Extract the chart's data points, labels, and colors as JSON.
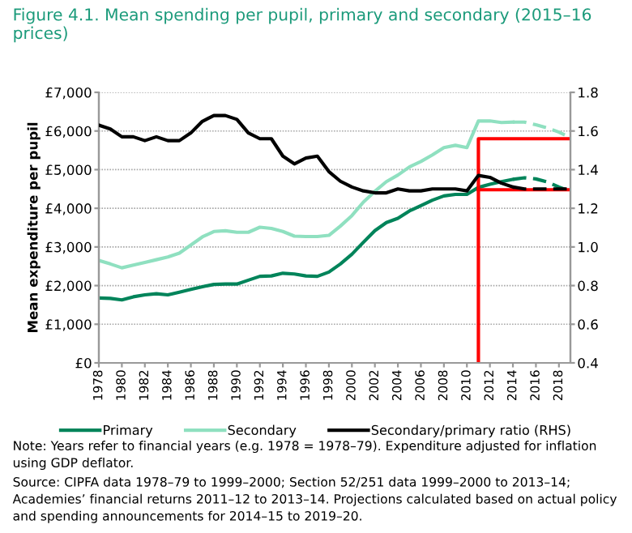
{
  "chart_data": {
    "type": "line",
    "title": "Figure 4.1. Mean spending per pupil, primary and secondary (2015–16 prices)",
    "ylabel": "Mean expenditure per pupil",
    "xlim": [
      1978,
      2019
    ],
    "xticks": [
      1978,
      1980,
      1982,
      1984,
      1986,
      1988,
      1990,
      1992,
      1994,
      1996,
      1998,
      2000,
      2002,
      2004,
      2006,
      2008,
      2010,
      2012,
      2014,
      2016,
      2018
    ],
    "ylim": [
      0,
      7000
    ],
    "yticks": [
      {
        "value": 0,
        "label": "£0"
      },
      {
        "value": 1000,
        "label": "£1,000"
      },
      {
        "value": 2000,
        "label": "£2,000"
      },
      {
        "value": 3000,
        "label": "£3,000"
      },
      {
        "value": 4000,
        "label": "£4,000"
      },
      {
        "value": 5000,
        "label": "£5,000"
      },
      {
        "value": 6000,
        "label": "£6,000"
      },
      {
        "value": 7000,
        "label": "£7,000"
      }
    ],
    "y2lim": [
      0.4,
      1.8
    ],
    "y2ticks": [
      0.4,
      0.6,
      0.8,
      {
        "value": 1.0,
        "label": "1.0"
      },
      1.2,
      1.4,
      1.6,
      1.8
    ],
    "grid": "y",
    "legend": "bottom",
    "marker": "none",
    "series": [
      {
        "name": "Primary",
        "color": "#00845a",
        "line_style": "solid",
        "x": [
          1978,
          1979,
          1980,
          1981,
          1982,
          1983,
          1984,
          1985,
          1986,
          1987,
          1988,
          1989,
          1990,
          1991,
          1992,
          1993,
          1994,
          1995,
          1996,
          1997,
          1998,
          1999,
          2000,
          2001,
          2002,
          2003,
          2004,
          2005,
          2006,
          2007,
          2008,
          2009,
          2010,
          2011,
          2012,
          2013,
          2014
        ],
        "values": [
          1680,
          1670,
          1630,
          1710,
          1760,
          1790,
          1760,
          1830,
          1900,
          1970,
          2030,
          2040,
          2040,
          2140,
          2240,
          2250,
          2320,
          2300,
          2250,
          2240,
          2350,
          2560,
          2810,
          3120,
          3420,
          3630,
          3740,
          3930,
          4070,
          4210,
          4320,
          4360,
          4360,
          4540,
          4620,
          4690,
          4750
        ]
      },
      {
        "name": "Secondary",
        "color": "#8fe0c0",
        "line_style": "solid",
        "x": [
          1978,
          1979,
          1980,
          1981,
          1982,
          1983,
          1984,
          1985,
          1986,
          1987,
          1988,
          1989,
          1990,
          1991,
          1992,
          1993,
          1994,
          1995,
          1996,
          1997,
          1998,
          1999,
          2000,
          2001,
          2002,
          2003,
          2004,
          2005,
          2006,
          2007,
          2008,
          2009,
          2010,
          2011,
          2012,
          2013,
          2014
        ],
        "values": [
          2650,
          2560,
          2460,
          2530,
          2600,
          2670,
          2740,
          2840,
          3050,
          3260,
          3400,
          3420,
          3380,
          3380,
          3510,
          3480,
          3400,
          3280,
          3270,
          3270,
          3300,
          3540,
          3810,
          4160,
          4440,
          4690,
          4860,
          5070,
          5210,
          5380,
          5570,
          5630,
          5570,
          6260,
          6260,
          6220,
          6230
        ]
      },
      {
        "name": "Secondary/primary ratio (RHS)",
        "color": "#000000",
        "line_style": "solid",
        "axis": "y2",
        "x": [
          1978,
          1979,
          1980,
          1981,
          1982,
          1983,
          1984,
          1985,
          1986,
          1987,
          1988,
          1989,
          1990,
          1991,
          1992,
          1993,
          1994,
          1995,
          1996,
          1997,
          1998,
          1999,
          2000,
          2001,
          2002,
          2003,
          2004,
          2005,
          2006,
          2007,
          2008,
          2009,
          2010,
          2011,
          2012,
          2013,
          2014
        ],
        "values": [
          1.63,
          1.61,
          1.57,
          1.57,
          1.55,
          1.57,
          1.55,
          1.55,
          1.59,
          1.65,
          1.68,
          1.68,
          1.66,
          1.59,
          1.56,
          1.56,
          1.47,
          1.43,
          1.46,
          1.47,
          1.39,
          1.34,
          1.31,
          1.29,
          1.28,
          1.28,
          1.3,
          1.29,
          1.29,
          1.3,
          1.3,
          1.3,
          1.29,
          1.37,
          1.36,
          1.33,
          1.31
        ]
      },
      {
        "color": "#00845a",
        "line_style": "dashed",
        "x": [
          2014,
          2015,
          2016,
          2017,
          2018,
          2019
        ],
        "values": [
          4750,
          4790,
          4760,
          4680,
          4550,
          4440
        ]
      },
      {
        "color": "#8fe0c0",
        "line_style": "dashed",
        "x": [
          2014,
          2015,
          2016,
          2017,
          2018,
          2019
        ],
        "values": [
          6230,
          6230,
          6160,
          6080,
          5970,
          5830
        ]
      },
      {
        "color": "#000000",
        "line_style": "dashed",
        "axis": "y2",
        "x": [
          2014,
          2015,
          2016,
          2017,
          2018,
          2019
        ],
        "values": [
          1.31,
          1.3,
          1.3,
          1.3,
          1.3,
          1.3
        ]
      },
      {
        "color": "#ff0000",
        "line_style": "solid",
        "x": [
          2011,
          2011,
          2019
        ],
        "values": [
          0,
          5800,
          5800
        ]
      },
      {
        "color": "#ff0000",
        "line_style": "solid",
        "x": [
          2011,
          2019
        ],
        "values": [
          4480,
          4480
        ]
      }
    ],
    "annotations": [
      "Note: Years refer to financial years (e.g. 1978 = 1978–79). Expenditure adjusted for inflation using GDP deflator.",
      "Source: CIPFA data 1978–79 to 1999–2000; Section 52/251 data 1999–2000 to 2013–14; Academies’ financial returns 2011–12 to 2013–14. Projections calculated based on actual policy and spending announcements for 2014–15 to 2019–20."
    ]
  }
}
